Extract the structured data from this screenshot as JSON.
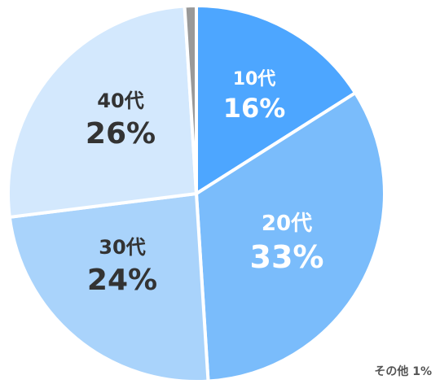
{
  "chart_data": {
    "type": "pie",
    "title": "",
    "slices": [
      {
        "name": "10代",
        "value": 16,
        "display": "16%",
        "color": "#4da6ff",
        "text_color": "#ffffff"
      },
      {
        "name": "20代",
        "value": 33,
        "display": "33%",
        "color": "#7abcfb",
        "text_color": "#ffffff"
      },
      {
        "name": "30代",
        "value": 24,
        "display": "24%",
        "color": "#a9d3fb",
        "text_color": "#333333"
      },
      {
        "name": "40代",
        "value": 26,
        "display": "26%",
        "color": "#d3e8fd",
        "text_color": "#333333"
      },
      {
        "name": "その他",
        "value": 1,
        "display": "1%",
        "color": "#999999",
        "text_color": "#555555"
      }
    ]
  },
  "other_label": "その他 1%"
}
